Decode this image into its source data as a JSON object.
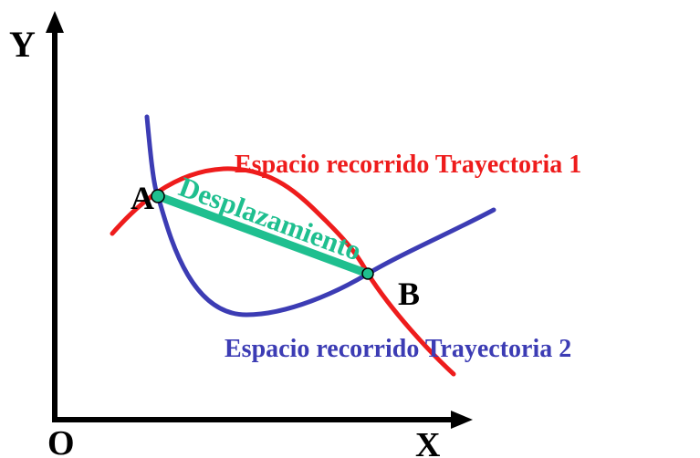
{
  "axes": {
    "y_label": "Y",
    "x_label": "X",
    "origin_label": "O"
  },
  "points": {
    "a_label": "A",
    "b_label": "B"
  },
  "labels": {
    "trajectory_1": "Espacio recorrido Trayectoria 1",
    "trajectory_2": "Espacio recorrido Trayectoria 2",
    "displacement": "Desplazamiento"
  },
  "colors": {
    "axes": "#000000",
    "trajectory_1": "#ee1c1c",
    "trajectory_2": "#3c3cb4",
    "displacement": "#1fbf8f",
    "point_fill": "#1fbf8f",
    "text_black": "#000000"
  }
}
